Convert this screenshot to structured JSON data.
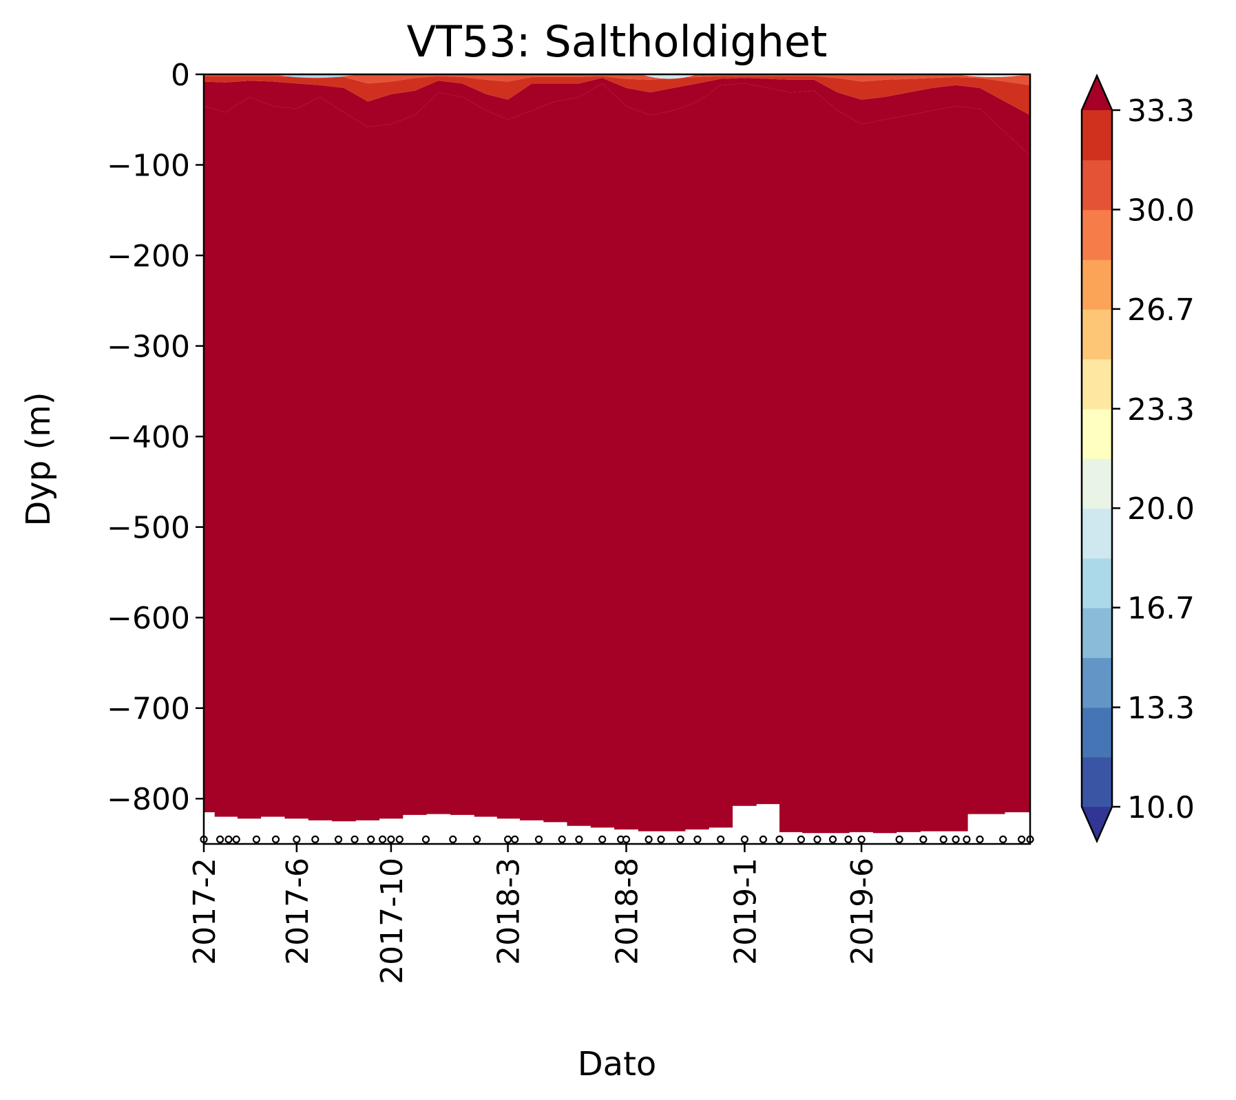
{
  "chart_data": {
    "type": "heatmap",
    "title": "VT53: Saltholdighet",
    "xlabel": "Dato",
    "ylabel": "Dyp (m)",
    "ylim": [
      -850,
      0
    ],
    "yticks": [
      0,
      -100,
      -200,
      -300,
      -400,
      -500,
      -600,
      -700,
      -800
    ],
    "ytick_labels": [
      "0",
      "−100",
      "−200",
      "−300",
      "−400",
      "−500",
      "−600",
      "−700",
      "−800"
    ],
    "xlim": [
      "2017-02-01",
      "2020-01-05"
    ],
    "xticks": [
      "2017-02-01",
      "2017-06-01",
      "2017-10-01",
      "2018-03-01",
      "2018-08-01",
      "2019-01-01",
      "2019-06-01"
    ],
    "xtick_labels": [
      "2017-2",
      "2017-6",
      "2017-10",
      "2018-3",
      "2018-8",
      "2019-1",
      "2019-6"
    ],
    "colorbar": {
      "levels": [
        10.0,
        11.67,
        13.33,
        15.0,
        16.67,
        18.33,
        20.0,
        21.67,
        23.33,
        25.0,
        26.67,
        28.33,
        30.0,
        31.67,
        33.33
      ],
      "tick_values": [
        10.0,
        13.33,
        16.67,
        20.0,
        23.33,
        26.67,
        30.0,
        33.33
      ],
      "tick_labels": [
        "10.0",
        "13.3",
        "16.7",
        "20.0",
        "23.3",
        "26.7",
        "30.0",
        "33.3"
      ],
      "colors": [
        "#313695",
        "#3a55a4",
        "#4575b4",
        "#6396c6",
        "#8abcda",
        "#abd9e9",
        "#cfe8f0",
        "#e9f4e6",
        "#ffffbf",
        "#fee7a0",
        "#fdc576",
        "#fba357",
        "#f67c4a",
        "#e55337",
        "#d0311f",
        "#a50026"
      ],
      "extend": "both",
      "under_color": "#313695",
      "over_color": "#a50026"
    },
    "salinity_columns": [
      {
        "date": "2017-02-01",
        "bottom_depth": -815,
        "isohalines": [
          {
            "level": 33.33,
            "depth": -35
          },
          {
            "level": 31.67,
            "depth": -8
          },
          {
            "level": 30.0,
            "depth": -2
          }
        ]
      },
      {
        "date": "2017-03-01",
        "bottom_depth": -820,
        "isohalines": [
          {
            "level": 33.33,
            "depth": -42
          },
          {
            "level": 31.67,
            "depth": -9
          },
          {
            "level": 30.0,
            "depth": -2
          }
        ]
      },
      {
        "date": "2017-04-01",
        "bottom_depth": -822,
        "isohalines": [
          {
            "level": 33.33,
            "depth": -25
          },
          {
            "level": 31.67,
            "depth": -7
          },
          {
            "level": 30.0,
            "depth": -2
          }
        ]
      },
      {
        "date": "2017-05-01",
        "bottom_depth": -820,
        "isohalines": [
          {
            "level": 33.33,
            "depth": -35
          },
          {
            "level": 31.67,
            "depth": -8
          },
          {
            "level": 30.0,
            "depth": -2
          }
        ]
      },
      {
        "date": "2017-06-01",
        "bottom_depth": -822,
        "isohalines": [
          {
            "level": 33.33,
            "depth": -38
          },
          {
            "level": 31.67,
            "depth": -10
          },
          {
            "level": 30.0,
            "depth": -3
          }
        ]
      },
      {
        "date": "2017-07-01",
        "bottom_depth": -824,
        "isohalines": [
          {
            "level": 33.33,
            "depth": -25
          },
          {
            "level": 31.67,
            "depth": -12
          },
          {
            "level": 30.0,
            "depth": -3
          }
        ]
      },
      {
        "date": "2017-08-01",
        "bottom_depth": -825,
        "isohalines": [
          {
            "level": 33.33,
            "depth": -42
          },
          {
            "level": 31.67,
            "depth": -15
          },
          {
            "level": 30.0,
            "depth": -3
          }
        ]
      },
      {
        "date": "2017-09-01",
        "bottom_depth": -824,
        "isohalines": [
          {
            "level": 33.33,
            "depth": -58
          },
          {
            "level": 31.67,
            "depth": -30
          },
          {
            "level": 30.0,
            "depth": -10
          }
        ]
      },
      {
        "date": "2017-10-01",
        "bottom_depth": -822,
        "isohalines": [
          {
            "level": 33.33,
            "depth": -55
          },
          {
            "level": 31.67,
            "depth": -22
          },
          {
            "level": 30.0,
            "depth": -8
          }
        ]
      },
      {
        "date": "2017-11-01",
        "bottom_depth": -818,
        "isohalines": [
          {
            "level": 33.33,
            "depth": -45
          },
          {
            "level": 31.67,
            "depth": -18
          },
          {
            "level": 30.0,
            "depth": -4
          }
        ]
      },
      {
        "date": "2017-12-01",
        "bottom_depth": -817,
        "isohalines": [
          {
            "level": 33.33,
            "depth": -20
          },
          {
            "level": 31.67,
            "depth": -7
          },
          {
            "level": 30.0,
            "depth": -2
          }
        ]
      },
      {
        "date": "2018-01-01",
        "bottom_depth": -818,
        "isohalines": [
          {
            "level": 33.33,
            "depth": -25
          },
          {
            "level": 31.67,
            "depth": -10
          },
          {
            "level": 30.0,
            "depth": -3
          }
        ]
      },
      {
        "date": "2018-02-01",
        "bottom_depth": -820,
        "isohalines": [
          {
            "level": 33.33,
            "depth": -40
          },
          {
            "level": 31.67,
            "depth": -22
          },
          {
            "level": 30.0,
            "depth": -6
          }
        ]
      },
      {
        "date": "2018-03-01",
        "bottom_depth": -822,
        "isohalines": [
          {
            "level": 33.33,
            "depth": -50
          },
          {
            "level": 31.67,
            "depth": -28
          },
          {
            "level": 30.0,
            "depth": -8
          }
        ]
      },
      {
        "date": "2018-04-01",
        "bottom_depth": -824,
        "isohalines": [
          {
            "level": 33.33,
            "depth": -40
          },
          {
            "level": 31.67,
            "depth": -10
          },
          {
            "level": 30.0,
            "depth": -3
          }
        ]
      },
      {
        "date": "2018-05-01",
        "bottom_depth": -826,
        "isohalines": [
          {
            "level": 33.33,
            "depth": -30
          },
          {
            "level": 31.67,
            "depth": -10
          },
          {
            "level": 30.0,
            "depth": -3
          }
        ]
      },
      {
        "date": "2018-06-01",
        "bottom_depth": -830,
        "isohalines": [
          {
            "level": 33.33,
            "depth": -25
          },
          {
            "level": 31.67,
            "depth": -10
          },
          {
            "level": 30.0,
            "depth": -3
          }
        ]
      },
      {
        "date": "2018-07-01",
        "bottom_depth": -832,
        "isohalines": [
          {
            "level": 33.33,
            "depth": -10
          },
          {
            "level": 31.67,
            "depth": -4
          },
          {
            "level": 30.0,
            "depth": -2
          }
        ]
      },
      {
        "date": "2018-08-01",
        "bottom_depth": -834,
        "isohalines": [
          {
            "level": 33.33,
            "depth": -35
          },
          {
            "level": 31.67,
            "depth": -15
          },
          {
            "level": 30.0,
            "depth": -5
          }
        ]
      },
      {
        "date": "2018-09-01",
        "bottom_depth": -836,
        "isohalines": [
          {
            "level": 33.33,
            "depth": -45
          },
          {
            "level": 31.67,
            "depth": -20
          },
          {
            "level": 30.0,
            "depth": -6
          }
        ]
      },
      {
        "date": "2018-10-01",
        "bottom_depth": -836,
        "isohalines": [
          {
            "level": 33.33,
            "depth": -40
          },
          {
            "level": 31.67,
            "depth": -15
          },
          {
            "level": 30.0,
            "depth": -4
          }
        ]
      },
      {
        "date": "2018-11-01",
        "bottom_depth": -834,
        "isohalines": [
          {
            "level": 33.33,
            "depth": -30
          },
          {
            "level": 31.67,
            "depth": -10
          },
          {
            "level": 30.0,
            "depth": -3
          }
        ]
      },
      {
        "date": "2018-12-01",
        "bottom_depth": -832,
        "isohalines": [
          {
            "level": 33.33,
            "depth": -12
          },
          {
            "level": 31.67,
            "depth": -5
          },
          {
            "level": 30.0,
            "depth": -2
          }
        ]
      },
      {
        "date": "2019-01-01",
        "bottom_depth": -808,
        "isohalines": [
          {
            "level": 33.33,
            "depth": -10
          },
          {
            "level": 31.67,
            "depth": -4
          },
          {
            "level": 30.0,
            "depth": -2
          }
        ]
      },
      {
        "date": "2019-02-01",
        "bottom_depth": -806,
        "isohalines": [
          {
            "level": 33.33,
            "depth": -15
          },
          {
            "level": 31.67,
            "depth": -5
          },
          {
            "level": 30.0,
            "depth": -2
          }
        ]
      },
      {
        "date": "2019-03-01",
        "bottom_depth": -837,
        "isohalines": [
          {
            "level": 33.33,
            "depth": -20
          },
          {
            "level": 31.67,
            "depth": -6
          },
          {
            "level": 30.0,
            "depth": -2
          }
        ]
      },
      {
        "date": "2019-04-01",
        "bottom_depth": -838,
        "isohalines": [
          {
            "level": 33.33,
            "depth": -18
          },
          {
            "level": 31.67,
            "depth": -6
          },
          {
            "level": 30.0,
            "depth": -2
          }
        ]
      },
      {
        "date": "2019-05-01",
        "bottom_depth": -838,
        "isohalines": [
          {
            "level": 33.33,
            "depth": -40
          },
          {
            "level": 31.67,
            "depth": -20
          },
          {
            "level": 30.0,
            "depth": -4
          }
        ]
      },
      {
        "date": "2019-06-01",
        "bottom_depth": -837,
        "isohalines": [
          {
            "level": 33.33,
            "depth": -55
          },
          {
            "level": 31.67,
            "depth": -28
          },
          {
            "level": 30.0,
            "depth": -8
          }
        ]
      },
      {
        "date": "2019-07-01",
        "bottom_depth": -838,
        "isohalines": [
          {
            "level": 33.33,
            "depth": -50
          },
          {
            "level": 31.67,
            "depth": -25
          },
          {
            "level": 30.0,
            "depth": -6
          }
        ]
      },
      {
        "date": "2019-08-01",
        "bottom_depth": -837,
        "isohalines": [
          {
            "level": 33.33,
            "depth": -45
          },
          {
            "level": 31.67,
            "depth": -20
          },
          {
            "level": 30.0,
            "depth": -5
          }
        ]
      },
      {
        "date": "2019-09-01",
        "bottom_depth": -836,
        "isohalines": [
          {
            "level": 33.33,
            "depth": -40
          },
          {
            "level": 31.67,
            "depth": -15
          },
          {
            "level": 30.0,
            "depth": -4
          }
        ]
      },
      {
        "date": "2019-10-01",
        "bottom_depth": -836,
        "isohalines": [
          {
            "level": 33.33,
            "depth": -35
          },
          {
            "level": 31.67,
            "depth": -12
          },
          {
            "level": 30.0,
            "depth": -3
          }
        ]
      },
      {
        "date": "2019-11-01",
        "bottom_depth": -817,
        "isohalines": [
          {
            "level": 33.33,
            "depth": -38
          },
          {
            "level": 31.67,
            "depth": -15
          },
          {
            "level": 30.0,
            "depth": -4
          }
        ]
      },
      {
        "date": "2020-01-05",
        "bottom_depth": -815,
        "isohalines": [
          {
            "level": 33.33,
            "depth": -90
          },
          {
            "level": 31.67,
            "depth": -45
          },
          {
            "level": 30.0,
            "depth": -12
          }
        ]
      }
    ],
    "fresh_patches": [
      {
        "start": "2017-05-01",
        "end": "2017-08-20",
        "depth": -4,
        "level": 16.67
      },
      {
        "start": "2018-08-20",
        "end": "2018-11-01",
        "depth": -5,
        "level": 18.33
      },
      {
        "start": "2019-10-01",
        "end": "2020-01-05",
        "depth": -3,
        "level": 20.0
      }
    ],
    "sample_markers": {
      "depth": -845,
      "dates": [
        "2017-02-01",
        "2017-02-22",
        "2017-03-05",
        "2017-03-15",
        "2017-04-10",
        "2017-05-05",
        "2017-06-01",
        "2017-06-25",
        "2017-07-25",
        "2017-08-15",
        "2017-09-05",
        "2017-09-20",
        "2017-10-01",
        "2017-10-12",
        "2017-11-15",
        "2017-12-20",
        "2018-01-20",
        "2018-03-01",
        "2018-03-10",
        "2018-04-10",
        "2018-05-10",
        "2018-06-01",
        "2018-07-01",
        "2018-07-25",
        "2018-08-01",
        "2018-08-30",
        "2018-09-15",
        "2018-10-10",
        "2018-11-01",
        "2018-12-01",
        "2019-01-01",
        "2019-01-25",
        "2019-02-15",
        "2019-03-15",
        "2019-04-05",
        "2019-04-25",
        "2019-05-15",
        "2019-06-01",
        "2019-07-20",
        "2019-08-20",
        "2019-09-15",
        "2019-10-01",
        "2019-10-15",
        "2019-11-01",
        "2019-12-01",
        "2019-12-25",
        "2020-01-05"
      ]
    }
  }
}
